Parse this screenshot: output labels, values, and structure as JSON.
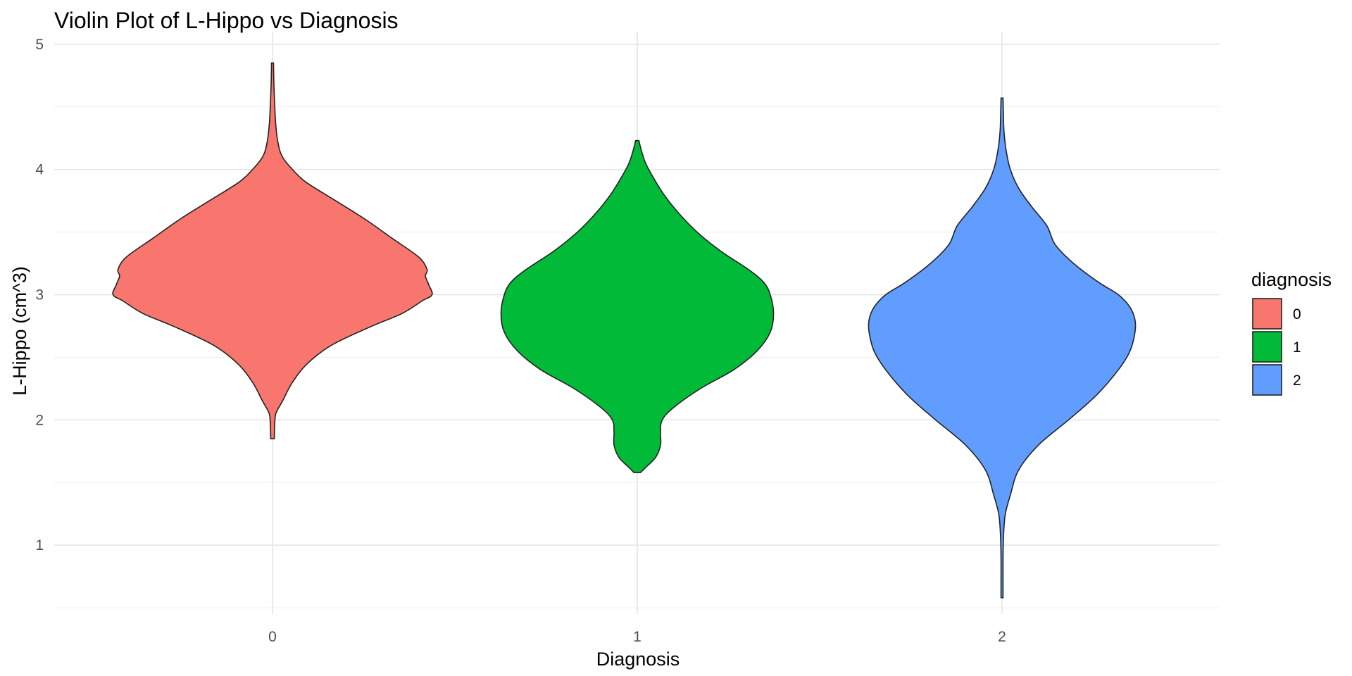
{
  "chart_data": {
    "type": "violin",
    "title": "Violin Plot of L-Hippo vs Diagnosis",
    "xlabel": "Diagnosis",
    "ylabel": "L-Hippo (cm^3)",
    "categories": [
      "0",
      "1",
      "2"
    ],
    "ylim": [
      0.45,
      5.1
    ],
    "yticks": [
      1,
      2,
      3,
      4,
      5
    ],
    "grid": true,
    "legend": {
      "title": "diagnosis",
      "position": "right",
      "entries": [
        {
          "label": "0",
          "color": "#F8766D"
        },
        {
          "label": "1",
          "color": "#00BA38"
        },
        {
          "label": "2",
          "color": "#619CFF"
        }
      ]
    },
    "violins": [
      {
        "category": "0",
        "color": "#F8766D",
        "min": 1.85,
        "max": 4.85,
        "profile": [
          [
            1.85,
            0.011
          ],
          [
            1.95,
            0.013
          ],
          [
            2.05,
            0.02
          ],
          [
            2.15,
            0.06
          ],
          [
            2.3,
            0.12
          ],
          [
            2.45,
            0.21
          ],
          [
            2.6,
            0.36
          ],
          [
            2.75,
            0.6
          ],
          [
            2.85,
            0.78
          ],
          [
            2.95,
            0.9
          ],
          [
            3.0,
            0.96
          ],
          [
            3.08,
            0.94
          ],
          [
            3.15,
            0.92
          ],
          [
            3.2,
            0.93
          ],
          [
            3.3,
            0.88
          ],
          [
            3.45,
            0.72
          ],
          [
            3.6,
            0.56
          ],
          [
            3.75,
            0.38
          ],
          [
            3.9,
            0.2
          ],
          [
            4.0,
            0.12
          ],
          [
            4.1,
            0.06
          ],
          [
            4.2,
            0.035
          ],
          [
            4.35,
            0.02
          ],
          [
            4.55,
            0.012
          ],
          [
            4.7,
            0.008
          ],
          [
            4.85,
            0.006
          ]
        ]
      },
      {
        "category": "1",
        "color": "#00BA38",
        "min": 1.58,
        "max": 4.23,
        "profile": [
          [
            1.58,
            0.02
          ],
          [
            1.62,
            0.05
          ],
          [
            1.7,
            0.11
          ],
          [
            1.8,
            0.14
          ],
          [
            1.9,
            0.14
          ],
          [
            2.0,
            0.15
          ],
          [
            2.1,
            0.22
          ],
          [
            2.25,
            0.38
          ],
          [
            2.4,
            0.58
          ],
          [
            2.55,
            0.72
          ],
          [
            2.7,
            0.8
          ],
          [
            2.85,
            0.82
          ],
          [
            3.0,
            0.8
          ],
          [
            3.1,
            0.76
          ],
          [
            3.2,
            0.67
          ],
          [
            3.35,
            0.5
          ],
          [
            3.5,
            0.36
          ],
          [
            3.65,
            0.25
          ],
          [
            3.8,
            0.16
          ],
          [
            3.95,
            0.09
          ],
          [
            4.05,
            0.05
          ],
          [
            4.15,
            0.025
          ],
          [
            4.23,
            0.01
          ]
        ]
      },
      {
        "category": "2",
        "color": "#619CFF",
        "min": 0.58,
        "max": 4.57,
        "profile": [
          [
            0.58,
            0.006
          ],
          [
            0.7,
            0.006
          ],
          [
            0.9,
            0.006
          ],
          [
            1.1,
            0.01
          ],
          [
            1.25,
            0.02
          ],
          [
            1.4,
            0.05
          ],
          [
            1.6,
            0.1
          ],
          [
            1.8,
            0.22
          ],
          [
            2.0,
            0.4
          ],
          [
            2.2,
            0.57
          ],
          [
            2.4,
            0.7
          ],
          [
            2.55,
            0.77
          ],
          [
            2.7,
            0.8
          ],
          [
            2.8,
            0.8
          ],
          [
            2.9,
            0.77
          ],
          [
            3.0,
            0.7
          ],
          [
            3.1,
            0.58
          ],
          [
            3.25,
            0.43
          ],
          [
            3.4,
            0.32
          ],
          [
            3.55,
            0.27
          ],
          [
            3.7,
            0.18
          ],
          [
            3.85,
            0.1
          ],
          [
            4.0,
            0.05
          ],
          [
            4.15,
            0.025
          ],
          [
            4.3,
            0.012
          ],
          [
            4.45,
            0.008
          ],
          [
            4.57,
            0.006
          ]
        ]
      }
    ]
  }
}
